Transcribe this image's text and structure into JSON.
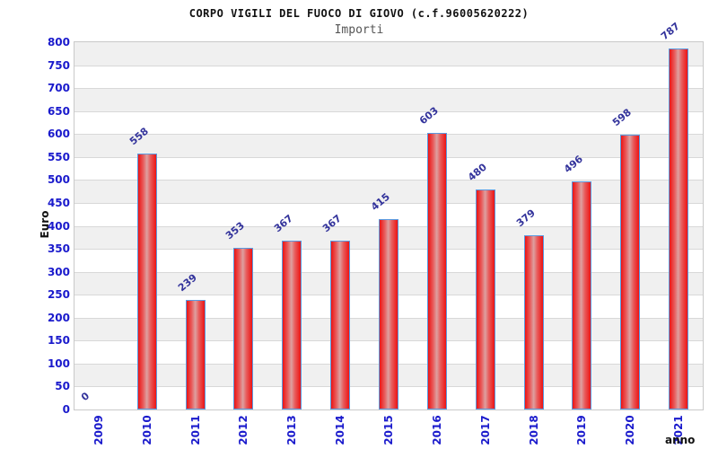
{
  "chart_data": {
    "type": "bar",
    "title": "CORPO VIGILI DEL FUOCO DI GIOVO (c.f.96005620222)",
    "subtitle": "Importi",
    "xlabel": "anno",
    "ylabel": "Euro",
    "categories": [
      "2009",
      "2010",
      "2011",
      "2012",
      "2013",
      "2014",
      "2015",
      "2016",
      "2017",
      "2018",
      "2019",
      "2020",
      "2021"
    ],
    "values": [
      0,
      558,
      239,
      353,
      367,
      367,
      415,
      603,
      480,
      379,
      496,
      598,
      787
    ],
    "ylim": [
      0,
      800
    ],
    "ytick_step": 50,
    "grid": "alternating-horizontal-bands",
    "legend": "none",
    "colors": {
      "bar_fill": "#ec1414",
      "bar_fill_highlight": "#dda0a0",
      "bar_border": "#5a9ae0",
      "value_label": "#32329b",
      "tick_label": "#1a1acc",
      "band_gray": "#f0f0f0",
      "band_white": "#ffffff",
      "gridline": "#d8d8d8",
      "plot_border": "#c9c9c9",
      "title_text": "#111111",
      "subtitle_text": "#555555"
    }
  }
}
